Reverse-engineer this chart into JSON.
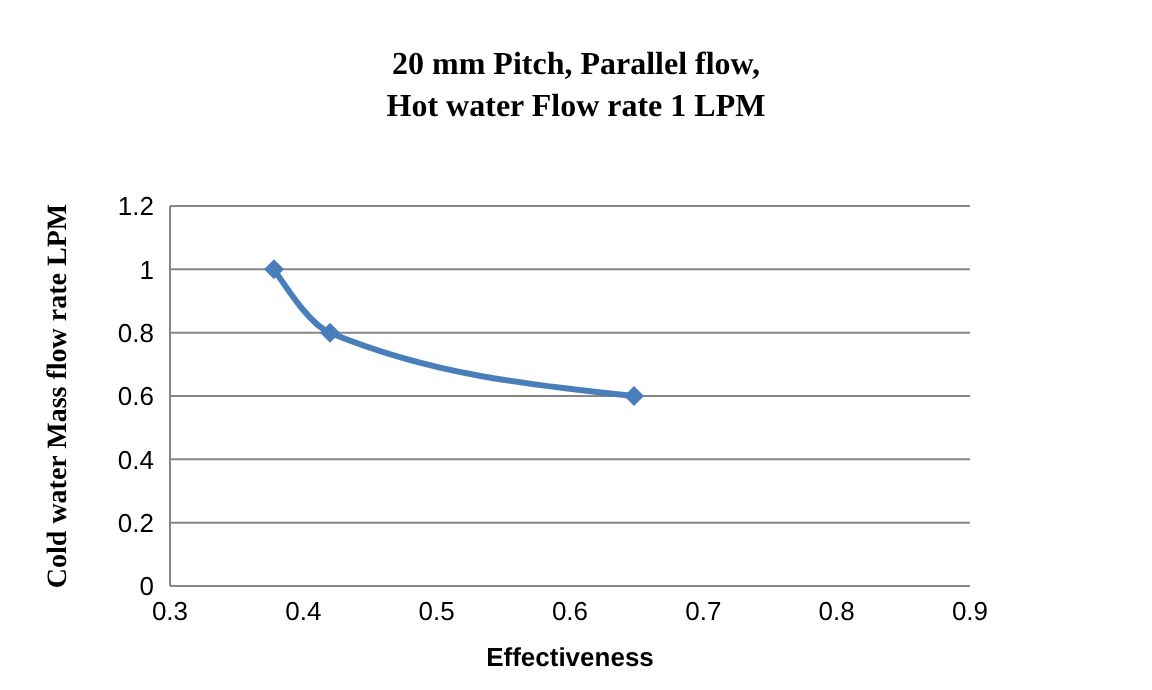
{
  "chart_data": {
    "type": "line",
    "title": "20 mm Pitch, Parallel flow,\nHot water Flow rate 1 LPM",
    "xlabel": "Effectiveness",
    "ylabel": "Cold water Mass flow rate LPM",
    "x": [
      0.378,
      0.42,
      0.648
    ],
    "series": [
      {
        "color": "#4a7ebb",
        "values": [
          1,
          0.8,
          0.6
        ]
      }
    ],
    "xlim": [
      0.3,
      0.9
    ],
    "xticks": [
      0.3,
      0.4,
      0.5,
      0.6,
      0.7,
      0.8,
      0.9
    ],
    "ylim": [
      0,
      1.2
    ],
    "yticks": [
      0,
      0.2,
      0.4,
      0.6,
      0.8,
      1,
      1.2
    ],
    "grid": "y",
    "legend": false,
    "marker": "diamond",
    "line_style": "solid"
  }
}
